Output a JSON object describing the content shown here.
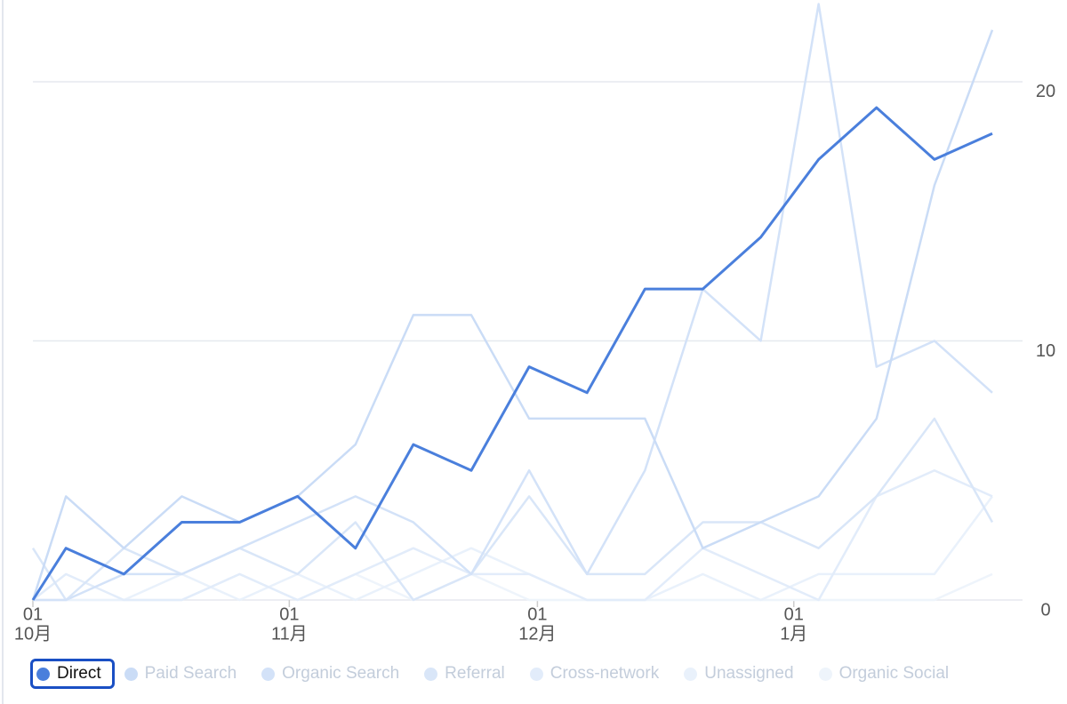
{
  "chart_data": {
    "type": "line",
    "x": [
      0,
      4,
      11,
      18,
      25,
      32,
      39,
      46,
      53,
      60,
      67,
      74,
      81,
      88,
      95,
      102,
      109,
      116
    ],
    "xlim": [
      0,
      116
    ],
    "xticks": [
      {
        "value": 0,
        "label": "01",
        "group": "10月"
      },
      {
        "value": 31,
        "label": "01",
        "group": "11月"
      },
      {
        "value": 61,
        "label": "01",
        "group": "12月"
      },
      {
        "value": 92,
        "label": "01",
        "group": "1月"
      }
    ],
    "ylim": [
      0,
      23
    ],
    "yticks": [
      0,
      10,
      20
    ],
    "grid": true,
    "legend": "bottom",
    "series": [
      {
        "name": "Direct",
        "color": "#4a7fdc",
        "values": [
          0,
          2,
          1,
          3,
          3,
          4,
          2,
          6,
          5,
          9,
          8,
          12,
          12,
          14,
          17,
          19,
          17,
          18
        ]
      },
      {
        "name": "Paid Search",
        "color": "#cadcf6",
        "values": [
          0,
          4,
          2,
          4,
          3,
          4,
          6,
          11,
          11,
          7,
          7,
          7,
          2,
          3,
          4,
          7,
          16,
          22
        ]
      },
      {
        "name": "Organic Search",
        "color": "#d3e2f8",
        "values": [
          0,
          0,
          1,
          1,
          2,
          3,
          4,
          3,
          1,
          5,
          1,
          5,
          12,
          10,
          23,
          9,
          10,
          8
        ]
      },
      {
        "name": "Referral",
        "color": "#d9e6f8",
        "values": [
          2,
          0,
          2,
          1,
          2,
          1,
          3,
          0,
          1,
          4,
          1,
          1,
          3,
          3,
          2,
          4,
          7,
          3
        ]
      },
      {
        "name": "Cross-network",
        "color": "#e2ecfa",
        "values": [
          0,
          1,
          0,
          0,
          1,
          0,
          1,
          2,
          1,
          1,
          0,
          0,
          2,
          1,
          0,
          4,
          5,
          4
        ]
      },
      {
        "name": "Unassigned",
        "color": "#e9f1fb",
        "values": [
          0,
          0,
          0,
          1,
          0,
          1,
          0,
          1,
          2,
          1,
          0,
          0,
          1,
          0,
          1,
          1,
          1,
          4
        ]
      },
      {
        "name": "Organic Social",
        "color": "#eef4fb",
        "values": [
          0,
          0,
          0,
          0,
          1,
          0,
          1,
          0,
          1,
          0,
          0,
          0,
          0,
          0,
          0,
          0,
          0,
          1
        ]
      }
    ]
  }
}
